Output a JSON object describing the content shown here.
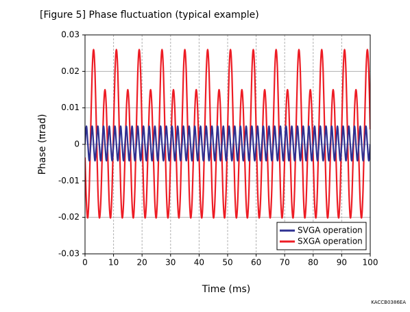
{
  "chart_data": {
    "type": "line",
    "title": "[Figure 5] Phase fluctuation (typical example)",
    "x_label": "Time (ms)",
    "y_label": "Phase (πrad)",
    "xlim": [
      0,
      100
    ],
    "xticks": [
      0,
      10,
      20,
      30,
      40,
      50,
      60,
      70,
      80,
      90,
      100
    ],
    "ylim": [
      -0.03,
      0.03
    ],
    "yticks": [
      -0.03,
      -0.02,
      -0.01,
      0,
      0.01,
      0.02,
      0.03
    ],
    "grid": true,
    "legend": "lower right",
    "x": [
      0,
      0.5,
      1,
      1.5,
      2,
      2.5,
      3,
      3.5,
      4,
      4.5,
      5,
      5.5,
      6,
      6.5,
      7,
      7.5,
      8,
      8.5,
      9,
      9.5,
      10,
      10.5,
      11,
      11.5,
      12,
      12.5,
      13,
      13.5,
      14,
      14.5,
      15,
      15.5,
      16,
      16.5,
      17,
      17.5,
      18,
      18.5,
      19,
      19.5,
      20,
      20.5,
      21,
      21.5,
      22,
      22.5,
      23,
      23.5,
      24,
      24.5,
      25,
      25.5,
      26,
      26.5,
      27,
      27.5,
      28,
      28.5,
      29,
      29.5,
      30,
      30.5,
      31,
      31.5,
      32,
      32.5,
      33,
      33.5,
      34,
      34.5,
      35,
      35.5,
      36,
      36.5,
      37,
      37.5,
      38,
      38.5,
      39,
      39.5,
      40,
      40.5,
      41,
      41.5,
      42,
      42.5,
      43,
      43.5,
      44,
      44.5,
      45,
      45.5,
      46,
      46.5,
      47,
      47.5,
      48,
      48.5,
      49,
      49.5,
      50,
      50.5,
      51,
      51.5,
      52,
      52.5,
      53,
      53.5,
      54,
      54.5,
      55,
      55.5,
      56,
      56.5,
      57,
      57.5,
      58,
      58.5,
      59,
      59.5,
      60,
      60.5,
      61,
      61.5,
      62,
      62.5,
      63,
      63.5,
      64,
      64.5,
      65,
      65.5,
      66,
      66.5,
      67,
      67.5,
      68,
      68.5,
      69,
      69.5,
      70,
      70.5,
      71,
      71.5,
      72,
      72.5,
      73,
      73.5,
      74,
      74.5,
      75,
      75.5,
      76,
      76.5,
      77,
      77.5,
      78,
      78.5,
      79,
      79.5,
      80,
      80.5,
      81,
      81.5,
      82,
      82.5,
      83,
      83.5,
      84,
      84.5,
      85,
      85.5,
      86,
      86.5,
      87,
      87.5,
      88,
      88.5,
      89,
      89.5,
      90,
      90.5,
      91,
      91.5,
      92,
      92.5,
      93,
      93.5,
      94,
      94.5,
      95,
      95.5,
      96,
      96.5,
      97,
      97.5,
      98,
      98.5,
      99,
      99.5,
      100
    ],
    "series": [
      {
        "name": "SVGA operation",
        "color": "#2e3192",
        "values": [
          0,
          0.005,
          0,
          -0.0045,
          0,
          0.005,
          0,
          -0.0045,
          0,
          0.005,
          0,
          -0.0045,
          0,
          0.005,
          0,
          -0.0045,
          0,
          0.005,
          0,
          -0.0045,
          0,
          0.005,
          0,
          -0.0045,
          0,
          0.005,
          0,
          -0.0045,
          0,
          0.005,
          0,
          -0.0045,
          0,
          0.005,
          0,
          -0.0045,
          0,
          0.005,
          0,
          -0.0045,
          0,
          0.005,
          0,
          -0.0045,
          0,
          0.005,
          0,
          -0.0045,
          0,
          0.005,
          0,
          -0.0045,
          0,
          0.005,
          0,
          -0.0045,
          0,
          0.005,
          0,
          -0.0045,
          0,
          0.005,
          0,
          -0.0045,
          0,
          0.005,
          0,
          -0.0045,
          0,
          0.005,
          0,
          -0.0045,
          0,
          0.005,
          0,
          -0.0045,
          0,
          0.005,
          0,
          -0.0045,
          0,
          0.005,
          0,
          -0.0045,
          0,
          0.005,
          0,
          -0.0045,
          0,
          0.005,
          0,
          -0.0045,
          0,
          0.005,
          0,
          -0.0045,
          0,
          0.005,
          0,
          -0.0045,
          0,
          0.005,
          0,
          -0.0045,
          0,
          0.005,
          0,
          -0.0045,
          0,
          0.005,
          0,
          -0.0045,
          0,
          0.005,
          0,
          -0.0045,
          0,
          0.005,
          0,
          -0.0045,
          0,
          0.005,
          0,
          -0.0045,
          0,
          0.005,
          0,
          -0.0045,
          0,
          0.005,
          0,
          -0.0045,
          0,
          0.005,
          0,
          -0.0045,
          0,
          0.005,
          0,
          -0.0045,
          0,
          0.005,
          0,
          -0.0045,
          0,
          0.005,
          0,
          -0.0045,
          0,
          0.005,
          0,
          -0.0045,
          0,
          0.005,
          0,
          -0.0045,
          0,
          0.005,
          0,
          -0.0045,
          0,
          0.005,
          0,
          -0.0045,
          0,
          0.005,
          0,
          -0.0045,
          0,
          0.005,
          0,
          -0.0045,
          0,
          0.005,
          0,
          -0.0045,
          0,
          0.005,
          0,
          -0.0045,
          0,
          0.005,
          0,
          -0.0045,
          0,
          0.005,
          0,
          -0.0045,
          0,
          0.005,
          0,
          -0.0045,
          0,
          0.005,
          0,
          -0.0045,
          0,
          0.005,
          0,
          -0.0045,
          0
        ]
      },
      {
        "name": "SXGA operation",
        "color": "#ed1c24",
        "values": [
          -0.0036,
          -0.0162,
          -0.02,
          -0.012,
          0.0041,
          0.0197,
          0.026,
          0.0197,
          0.0041,
          -0.012,
          -0.02,
          -0.0162,
          -0.0036,
          0.0095,
          0.015,
          0.0095,
          -0.0036,
          -0.0162,
          -0.02,
          -0.012,
          0.0041,
          0.0197,
          0.026,
          0.0197,
          0.0041,
          -0.012,
          -0.02,
          -0.0162,
          -0.0036,
          0.0095,
          0.015,
          0.0095,
          -0.0036,
          -0.0162,
          -0.02,
          -0.012,
          0.0041,
          0.0197,
          0.026,
          0.0197,
          0.0041,
          -0.012,
          -0.02,
          -0.0162,
          -0.0036,
          0.0095,
          0.015,
          0.0095,
          -0.0036,
          -0.0162,
          -0.02,
          -0.012,
          0.0041,
          0.0197,
          0.026,
          0.0197,
          0.0041,
          -0.012,
          -0.02,
          -0.0162,
          -0.0036,
          0.0095,
          0.015,
          0.0095,
          -0.0036,
          -0.0162,
          -0.02,
          -0.012,
          0.0041,
          0.0197,
          0.026,
          0.0197,
          0.0041,
          -0.012,
          -0.02,
          -0.0162,
          -0.0036,
          0.0095,
          0.015,
          0.0095,
          -0.0036,
          -0.0162,
          -0.02,
          -0.012,
          0.0041,
          0.0197,
          0.026,
          0.0197,
          0.0041,
          -0.012,
          -0.02,
          -0.0162,
          -0.0036,
          0.0095,
          0.015,
          0.0095,
          -0.0036,
          -0.0162,
          -0.02,
          -0.012,
          0.0041,
          0.0197,
          0.026,
          0.0197,
          0.0041,
          -0.012,
          -0.02,
          -0.0162,
          -0.0036,
          0.0095,
          0.015,
          0.0095,
          -0.0036,
          -0.0162,
          -0.02,
          -0.012,
          0.0041,
          0.0197,
          0.026,
          0.0197,
          0.0041,
          -0.012,
          -0.02,
          -0.0162,
          -0.0036,
          0.0095,
          0.015,
          0.0095,
          -0.0036,
          -0.0162,
          -0.02,
          -0.012,
          0.0041,
          0.0197,
          0.026,
          0.0197,
          0.0041,
          -0.012,
          -0.02,
          -0.0162,
          -0.0036,
          0.0095,
          0.015,
          0.0095,
          -0.0036,
          -0.0162,
          -0.02,
          -0.012,
          0.0041,
          0.0197,
          0.026,
          0.0197,
          0.0041,
          -0.012,
          -0.02,
          -0.0162,
          -0.0036,
          0.0095,
          0.015,
          0.0095,
          -0.0036,
          -0.0162,
          -0.02,
          -0.012,
          0.0041,
          0.0197,
          0.026,
          0.0197,
          0.0041,
          -0.012,
          -0.02,
          -0.0162,
          -0.0036,
          0.0095,
          0.015,
          0.0095,
          -0.0036,
          -0.0162,
          -0.02,
          -0.012,
          0.0041,
          0.0197,
          0.026,
          0.0197,
          0.0041,
          -0.012,
          -0.02,
          -0.0162,
          -0.0036,
          0.0095,
          0.015,
          0.0095,
          -0.0036,
          -0.0162,
          -0.02,
          -0.012,
          0.0041,
          0.0197,
          0.026,
          0.0197,
          0.0041
        ]
      }
    ]
  },
  "figure_code": "KACCB0386EA"
}
